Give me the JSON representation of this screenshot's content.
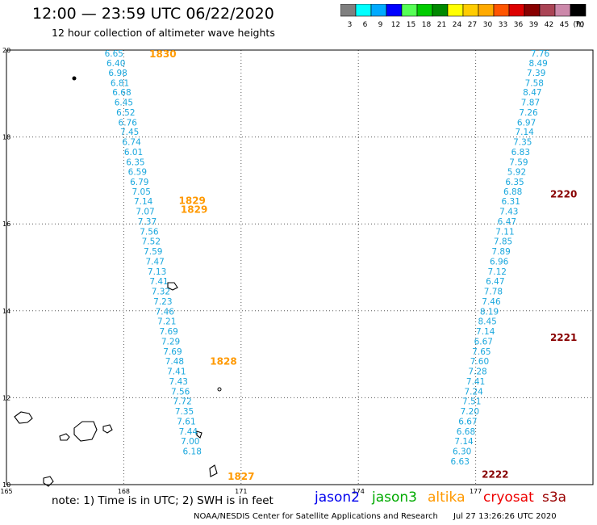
{
  "header": {
    "title": "12:00 — 23:59 UTC 06/22/2020",
    "subtitle": "12 hour collection of altimeter wave heights"
  },
  "legend": {
    "unit": "(ft)",
    "bins": [
      {
        "label": "3",
        "color": "#7f7f7f"
      },
      {
        "label": "6",
        "color": "#00ffff"
      },
      {
        "label": "9",
        "color": "#00aaff"
      },
      {
        "label": "12",
        "color": "#0000ff"
      },
      {
        "label": "15",
        "color": "#55ff55"
      },
      {
        "label": "18",
        "color": "#00cc00"
      },
      {
        "label": "21",
        "color": "#008800"
      },
      {
        "label": "24",
        "color": "#ffff00"
      },
      {
        "label": "27",
        "color": "#ffcc00"
      },
      {
        "label": "30",
        "color": "#ffaa00"
      },
      {
        "label": "33",
        "color": "#ff5500"
      },
      {
        "label": "36",
        "color": "#dd0000"
      },
      {
        "label": "39",
        "color": "#880000"
      },
      {
        "label": "42",
        "color": "#aa4455"
      },
      {
        "label": "45",
        "color": "#cc88aa"
      },
      {
        "label": "70",
        "color": "#000000"
      }
    ]
  },
  "axes": {
    "x_ticks": [
      "165",
      "168",
      "171",
      "174",
      "177"
    ],
    "y_ticks": [
      "20",
      "18",
      "16",
      "14",
      "12",
      "10"
    ]
  },
  "tracks": [
    {
      "satellite": "altika",
      "pass_labels": [
        {
          "text": "1830",
          "lat": 19.93
        },
        {
          "text": "1829",
          "lat": 16.55
        },
        {
          "text": "1829",
          "lat": 16.35
        },
        {
          "text": "1828",
          "lat": 12.85
        },
        {
          "text": "1827",
          "lat": 10.2
        }
      ],
      "observations": [
        {
          "lon": 167.75,
          "lat": 19.93,
          "swh": "6.65"
        },
        {
          "lon": 167.8,
          "lat": 19.7,
          "swh": "6.40"
        },
        {
          "lon": 167.85,
          "lat": 19.48,
          "swh": "6.98"
        },
        {
          "lon": 167.9,
          "lat": 19.25,
          "swh": "6.81"
        },
        {
          "lon": 167.95,
          "lat": 19.03,
          "swh": "6.68"
        },
        {
          "lon": 168.0,
          "lat": 18.8,
          "swh": "6.45"
        },
        {
          "lon": 168.05,
          "lat": 18.57,
          "swh": "6.52"
        },
        {
          "lon": 168.1,
          "lat": 18.34,
          "swh": "6.76"
        },
        {
          "lon": 168.15,
          "lat": 18.12,
          "swh": "7.45"
        },
        {
          "lon": 168.2,
          "lat": 17.89,
          "swh": "6.74"
        },
        {
          "lon": 168.25,
          "lat": 17.66,
          "swh": "6.01"
        },
        {
          "lon": 168.3,
          "lat": 17.43,
          "swh": "6.35"
        },
        {
          "lon": 168.35,
          "lat": 17.2,
          "swh": "6.59"
        },
        {
          "lon": 168.4,
          "lat": 16.97,
          "swh": "6.79"
        },
        {
          "lon": 168.45,
          "lat": 16.75,
          "swh": "7.05"
        },
        {
          "lon": 168.5,
          "lat": 16.52,
          "swh": "7.14"
        },
        {
          "lon": 168.55,
          "lat": 16.29,
          "swh": "7.07"
        },
        {
          "lon": 168.6,
          "lat": 16.06,
          "swh": "7.37"
        },
        {
          "lon": 168.65,
          "lat": 15.83,
          "swh": "7.56"
        },
        {
          "lon": 168.7,
          "lat": 15.6,
          "swh": "7.52"
        },
        {
          "lon": 168.75,
          "lat": 15.37,
          "swh": "7.59"
        },
        {
          "lon": 168.8,
          "lat": 15.14,
          "swh": "7.47"
        },
        {
          "lon": 168.85,
          "lat": 14.91,
          "swh": "7.13"
        },
        {
          "lon": 168.9,
          "lat": 14.68,
          "swh": "7.41"
        },
        {
          "lon": 168.95,
          "lat": 14.45,
          "swh": "7.32"
        },
        {
          "lon": 169.0,
          "lat": 14.22,
          "swh": "7.23"
        },
        {
          "lon": 169.05,
          "lat": 13.99,
          "swh": "7.46"
        },
        {
          "lon": 169.1,
          "lat": 13.76,
          "swh": "7.21"
        },
        {
          "lon": 169.15,
          "lat": 13.53,
          "swh": "7.69"
        },
        {
          "lon": 169.2,
          "lat": 13.3,
          "swh": "7.29"
        },
        {
          "lon": 169.25,
          "lat": 13.07,
          "swh": "7.69"
        },
        {
          "lon": 169.3,
          "lat": 12.84,
          "swh": "7.48"
        },
        {
          "lon": 169.35,
          "lat": 12.61,
          "swh": "7.41"
        },
        {
          "lon": 169.4,
          "lat": 12.38,
          "swh": "7.43"
        },
        {
          "lon": 169.45,
          "lat": 12.15,
          "swh": "7.56"
        },
        {
          "lon": 169.5,
          "lat": 11.92,
          "swh": "7.72"
        },
        {
          "lon": 169.55,
          "lat": 11.69,
          "swh": "7.35"
        },
        {
          "lon": 169.6,
          "lat": 11.46,
          "swh": "7.61"
        },
        {
          "lon": 169.65,
          "lat": 11.23,
          "swh": "7.44"
        },
        {
          "lon": 169.7,
          "lat": 11.0,
          "swh": "7.00"
        },
        {
          "lon": 169.75,
          "lat": 10.77,
          "swh": "6.18"
        }
      ]
    },
    {
      "satellite": "cryosat",
      "pass_labels": [
        {
          "text": "2220",
          "lat": 16.7
        },
        {
          "text": "2221",
          "lat": 13.4
        },
        {
          "text": "2222",
          "lat": 10.25
        }
      ],
      "observations": [
        {
          "lon": 178.65,
          "lat": 19.93,
          "swh": "7.76"
        },
        {
          "lon": 178.6,
          "lat": 19.7,
          "swh": "8.49"
        },
        {
          "lon": 178.55,
          "lat": 19.48,
          "swh": "7.39"
        },
        {
          "lon": 178.5,
          "lat": 19.25,
          "swh": "7.58"
        },
        {
          "lon": 178.45,
          "lat": 19.03,
          "swh": "8.47"
        },
        {
          "lon": 178.4,
          "lat": 18.8,
          "swh": "7.87"
        },
        {
          "lon": 178.35,
          "lat": 18.57,
          "swh": "7.26"
        },
        {
          "lon": 178.3,
          "lat": 18.34,
          "swh": "6.97"
        },
        {
          "lon": 178.25,
          "lat": 18.12,
          "swh": "7.14"
        },
        {
          "lon": 178.2,
          "lat": 17.89,
          "swh": "7.35"
        },
        {
          "lon": 178.15,
          "lat": 17.66,
          "swh": "6.83"
        },
        {
          "lon": 178.1,
          "lat": 17.43,
          "swh": "7.59"
        },
        {
          "lon": 178.05,
          "lat": 17.2,
          "swh": "5.92"
        },
        {
          "lon": 178.0,
          "lat": 16.97,
          "swh": "6.35"
        },
        {
          "lon": 177.95,
          "lat": 16.75,
          "swh": "6.88"
        },
        {
          "lon": 177.9,
          "lat": 16.52,
          "swh": "6.31"
        },
        {
          "lon": 177.85,
          "lat": 16.29,
          "swh": "7.43"
        },
        {
          "lon": 177.8,
          "lat": 16.06,
          "swh": "6.47"
        },
        {
          "lon": 177.75,
          "lat": 15.83,
          "swh": "7.11"
        },
        {
          "lon": 177.7,
          "lat": 15.6,
          "swh": "7.85"
        },
        {
          "lon": 177.65,
          "lat": 15.37,
          "swh": "7.89"
        },
        {
          "lon": 177.6,
          "lat": 15.14,
          "swh": "6.96"
        },
        {
          "lon": 177.55,
          "lat": 14.91,
          "swh": "7.12"
        },
        {
          "lon": 177.5,
          "lat": 14.68,
          "swh": "6.47"
        },
        {
          "lon": 177.45,
          "lat": 14.45,
          "swh": "7.78"
        },
        {
          "lon": 177.4,
          "lat": 14.22,
          "swh": "7.46"
        },
        {
          "lon": 177.35,
          "lat": 13.99,
          "swh": "8.19"
        },
        {
          "lon": 177.3,
          "lat": 13.76,
          "swh": "8.45"
        },
        {
          "lon": 177.25,
          "lat": 13.53,
          "swh": "7.14"
        },
        {
          "lon": 177.2,
          "lat": 13.3,
          "swh": "6.67"
        },
        {
          "lon": 177.15,
          "lat": 13.07,
          "swh": "7.65"
        },
        {
          "lon": 177.1,
          "lat": 12.84,
          "swh": "7.60"
        },
        {
          "lon": 177.05,
          "lat": 12.61,
          "swh": "7.28"
        },
        {
          "lon": 177.0,
          "lat": 12.38,
          "swh": "7.41"
        },
        {
          "lon": 176.95,
          "lat": 12.15,
          "swh": "7.24"
        },
        {
          "lon": 176.9,
          "lat": 11.92,
          "swh": "7.51"
        },
        {
          "lon": 176.85,
          "lat": 11.69,
          "swh": "7.20"
        },
        {
          "lon": 176.8,
          "lat": 11.46,
          "swh": "6.67"
        },
        {
          "lon": 176.75,
          "lat": 11.23,
          "swh": "6.68"
        },
        {
          "lon": 176.7,
          "lat": 11.0,
          "swh": "7.14"
        },
        {
          "lon": 176.65,
          "lat": 10.77,
          "swh": "6.30"
        },
        {
          "lon": 176.6,
          "lat": 10.54,
          "swh": "6.63"
        }
      ]
    }
  ],
  "footer": {
    "note": "note:  1) Time is in UTC;  2) SWH is in feet",
    "credit": "NOAA/NESDIS Center for Satellite Applications and Research",
    "timestamp": "Jul 27 13:26:26 UTC 2020",
    "satellites": [
      {
        "name": "jason2",
        "color": "#0000ee"
      },
      {
        "name": "jason3",
        "color": "#00aa00"
      },
      {
        "name": "altika",
        "color": "#ff9900"
      },
      {
        "name": "cryosat",
        "color": "#ee0000"
      },
      {
        "name": "s3a",
        "color": "#990000"
      }
    ]
  },
  "colors": {
    "swh_text": "#1aa7dd",
    "altika_pass": "#ff9900",
    "cryosat_pass": "#880000"
  }
}
